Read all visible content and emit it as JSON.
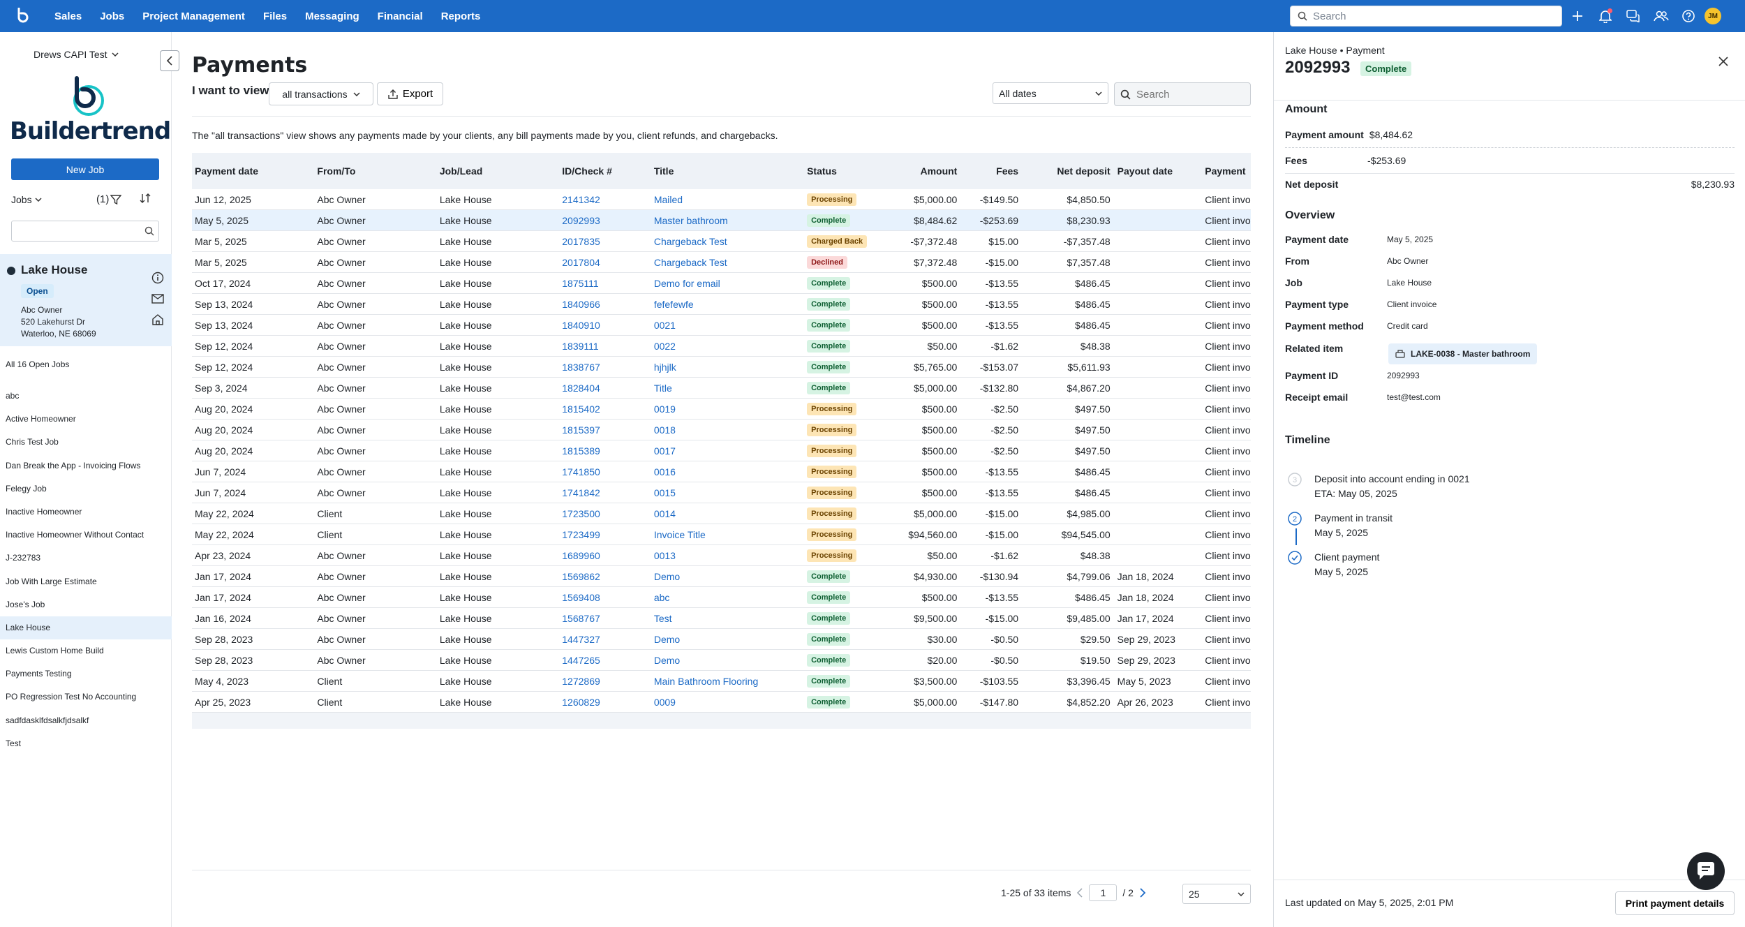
{
  "nav": {
    "items": [
      "Sales",
      "Jobs",
      "Project Management",
      "Files",
      "Messaging",
      "Financial",
      "Reports"
    ],
    "search_placeholder": "Search",
    "avatar_initials": "JM"
  },
  "sidebar": {
    "company": "Drews CAPI Test",
    "brand": "Buildertrend",
    "new_job": "New Job",
    "jobs_label": "Jobs",
    "filter_count": "(1)",
    "selected_job": {
      "name": "Lake House",
      "status": "Open",
      "owner": "Abc Owner",
      "street": "520 Lakehurst Dr",
      "city": "Waterloo, NE 68069"
    },
    "all_jobs": "All 16 Open Jobs",
    "jobs": [
      "abc",
      "Active Homeowner",
      "Chris Test Job",
      "Dan Break the App - Invoicing Flows",
      "Felegy Job",
      "Inactive Homeowner",
      "Inactive Homeowner Without Contact",
      "J-232783",
      "Job With Large Estimate",
      "Jose's Job",
      "Lake House",
      "Lewis Custom Home Build",
      "Payments Testing",
      "PO Regression Test No Accounting",
      "sadfdasklfdsalkfjdsalkf",
      "Test"
    ],
    "active_job_index": 10
  },
  "main": {
    "title": "Payments",
    "i_want": "I want to view",
    "view_select": "all transactions",
    "export": "Export",
    "date_select": "All dates",
    "search_placeholder": "Search",
    "description": "The \"all transactions\" view shows any payments made by your clients, any bill payments made by you, client refunds, and chargebacks.",
    "columns": [
      "Payment date",
      "From/To",
      "Job/Lead",
      "ID/Check #",
      "Title",
      "Status",
      "Amount",
      "Fees",
      "Net deposit",
      "Payout date",
      "Payment"
    ],
    "rows": [
      [
        "Jun 12, 2025",
        "Abc Owner",
        "Lake House",
        "2141342",
        "Mailed",
        "Processing",
        "$5,000.00",
        "-$149.50",
        "$4,850.50",
        "",
        "Client invo"
      ],
      [
        "May 5, 2025",
        "Abc Owner",
        "Lake House",
        "2092993",
        "Master bathroom",
        "Complete",
        "$8,484.62",
        "-$253.69",
        "$8,230.93",
        "",
        "Client invo"
      ],
      [
        "Mar 5, 2025",
        "Abc Owner",
        "Lake House",
        "2017835",
        "Chargeback Test",
        "Charged Back",
        "-$7,372.48",
        "$15.00",
        "-$7,357.48",
        "",
        "Client invo"
      ],
      [
        "Mar 5, 2025",
        "Abc Owner",
        "Lake House",
        "2017804",
        "Chargeback Test",
        "Declined",
        "$7,372.48",
        "-$15.00",
        "$7,357.48",
        "",
        "Client invo"
      ],
      [
        "Oct 17, 2024",
        "Abc Owner",
        "Lake House",
        "1875111",
        "Demo for email",
        "Complete",
        "$500.00",
        "-$13.55",
        "$486.45",
        "",
        "Client invo"
      ],
      [
        "Sep 13, 2024",
        "Abc Owner",
        "Lake House",
        "1840966",
        "fefefewfe",
        "Complete",
        "$500.00",
        "-$13.55",
        "$486.45",
        "",
        "Client invo"
      ],
      [
        "Sep 13, 2024",
        "Abc Owner",
        "Lake House",
        "1840910",
        "0021",
        "Complete",
        "$500.00",
        "-$13.55",
        "$486.45",
        "",
        "Client invo"
      ],
      [
        "Sep 12, 2024",
        "Abc Owner",
        "Lake House",
        "1839111",
        "0022",
        "Complete",
        "$50.00",
        "-$1.62",
        "$48.38",
        "",
        "Client invo"
      ],
      [
        "Sep 12, 2024",
        "Abc Owner",
        "Lake House",
        "1838767",
        "hjhjlk",
        "Complete",
        "$5,765.00",
        "-$153.07",
        "$5,611.93",
        "",
        "Client invo"
      ],
      [
        "Sep 3, 2024",
        "Abc Owner",
        "Lake House",
        "1828404",
        "Title",
        "Complete",
        "$5,000.00",
        "-$132.80",
        "$4,867.20",
        "",
        "Client invo"
      ],
      [
        "Aug 20, 2024",
        "Abc Owner",
        "Lake House",
        "1815402",
        "0019",
        "Processing",
        "$500.00",
        "-$2.50",
        "$497.50",
        "",
        "Client invo"
      ],
      [
        "Aug 20, 2024",
        "Abc Owner",
        "Lake House",
        "1815397",
        "0018",
        "Processing",
        "$500.00",
        "-$2.50",
        "$497.50",
        "",
        "Client invo"
      ],
      [
        "Aug 20, 2024",
        "Abc Owner",
        "Lake House",
        "1815389",
        "0017",
        "Processing",
        "$500.00",
        "-$2.50",
        "$497.50",
        "",
        "Client invo"
      ],
      [
        "Jun 7, 2024",
        "Abc Owner",
        "Lake House",
        "1741850",
        "0016",
        "Processing",
        "$500.00",
        "-$13.55",
        "$486.45",
        "",
        "Client invo"
      ],
      [
        "Jun 7, 2024",
        "Abc Owner",
        "Lake House",
        "1741842",
        "0015",
        "Processing",
        "$500.00",
        "-$13.55",
        "$486.45",
        "",
        "Client invo"
      ],
      [
        "May 22, 2024",
        "Client",
        "Lake House",
        "1723500",
        "0014",
        "Processing",
        "$5,000.00",
        "-$15.00",
        "$4,985.00",
        "",
        "Client invo"
      ],
      [
        "May 22, 2024",
        "Client",
        "Lake House",
        "1723499",
        "Invoice Title",
        "Processing",
        "$94,560.00",
        "-$15.00",
        "$94,545.00",
        "",
        "Client invo"
      ],
      [
        "Apr 23, 2024",
        "Abc Owner",
        "Lake House",
        "1689960",
        "0013",
        "Processing",
        "$50.00",
        "-$1.62",
        "$48.38",
        "",
        "Client invo"
      ],
      [
        "Jan 17, 2024",
        "Abc Owner",
        "Lake House",
        "1569862",
        "Demo",
        "Complete",
        "$4,930.00",
        "-$130.94",
        "$4,799.06",
        "Jan 18, 2024",
        "Client invo"
      ],
      [
        "Jan 17, 2024",
        "Abc Owner",
        "Lake House",
        "1569408",
        "abc",
        "Complete",
        "$500.00",
        "-$13.55",
        "$486.45",
        "Jan 18, 2024",
        "Client invo"
      ],
      [
        "Jan 16, 2024",
        "Abc Owner",
        "Lake House",
        "1568767",
        "Test",
        "Complete",
        "$9,500.00",
        "-$15.00",
        "$9,485.00",
        "Jan 17, 2024",
        "Client invo"
      ],
      [
        "Sep 28, 2023",
        "Abc Owner",
        "Lake House",
        "1447327",
        "Demo",
        "Complete",
        "$30.00",
        "-$0.50",
        "$29.50",
        "Sep 29, 2023",
        "Client invo"
      ],
      [
        "Sep 28, 2023",
        "Abc Owner",
        "Lake House",
        "1447265",
        "Demo",
        "Complete",
        "$20.00",
        "-$0.50",
        "$19.50",
        "Sep 29, 2023",
        "Client invo"
      ],
      [
        "May 4, 2023",
        "Client",
        "Lake House",
        "1272869",
        "Main Bathroom Flooring",
        "Complete",
        "$3,500.00",
        "-$103.55",
        "$3,396.45",
        "May 5, 2023",
        "Client invo"
      ],
      [
        "Apr 25, 2023",
        "Client",
        "Lake House",
        "1260829",
        "0009",
        "Complete",
        "$5,000.00",
        "-$147.80",
        "$4,852.20",
        "Apr 26, 2023",
        "Client invo"
      ]
    ],
    "highlight_row_index": 1,
    "pager": {
      "range": "1-25 of 33 items",
      "page": "1",
      "of": "/ 2",
      "page_size": "25"
    }
  },
  "panel": {
    "crumb": "Lake House • Payment",
    "number": "2092993",
    "status": "Complete",
    "amount_section": "Amount",
    "payment_amount_label": "Payment amount",
    "payment_amount": "$8,484.62",
    "fees_label": "Fees",
    "fees": "-$253.69",
    "net_label": "Net deposit",
    "net": "$8,230.93",
    "overview_section": "Overview",
    "overview": [
      {
        "k": "Payment date",
        "v": "May 5, 2025"
      },
      {
        "k": "From",
        "v": "Abc Owner"
      },
      {
        "k": "Job",
        "v": "Lake House"
      },
      {
        "k": "Payment type",
        "v": "Client invoice"
      },
      {
        "k": "Payment method",
        "v": "Credit card"
      },
      {
        "k": "Related item",
        "v": ""
      },
      {
        "k": "Payment ID",
        "v": "2092993"
      },
      {
        "k": "Receipt email",
        "v": "test@test.com"
      }
    ],
    "related_item": "LAKE-0038 - Master bathroom",
    "timeline_section": "Timeline",
    "timeline": [
      {
        "title": "Deposit into account ending in 0021",
        "sub": "ETA: May 05, 2025",
        "step": "3"
      },
      {
        "title": "Payment in transit",
        "sub": "May 5, 2025",
        "step": "2"
      },
      {
        "title": "Client payment",
        "sub": "May 5, 2025",
        "step": ""
      }
    ],
    "last_updated": "Last updated on May 5, 2025, 2:01 PM",
    "print": "Print payment details"
  },
  "colors": {
    "brand": "#1c6ac6",
    "highlight": "#e7f2fd",
    "complete": "#d6f3e3",
    "processing": "#fde5b5",
    "declined": "#fbd9d9"
  }
}
